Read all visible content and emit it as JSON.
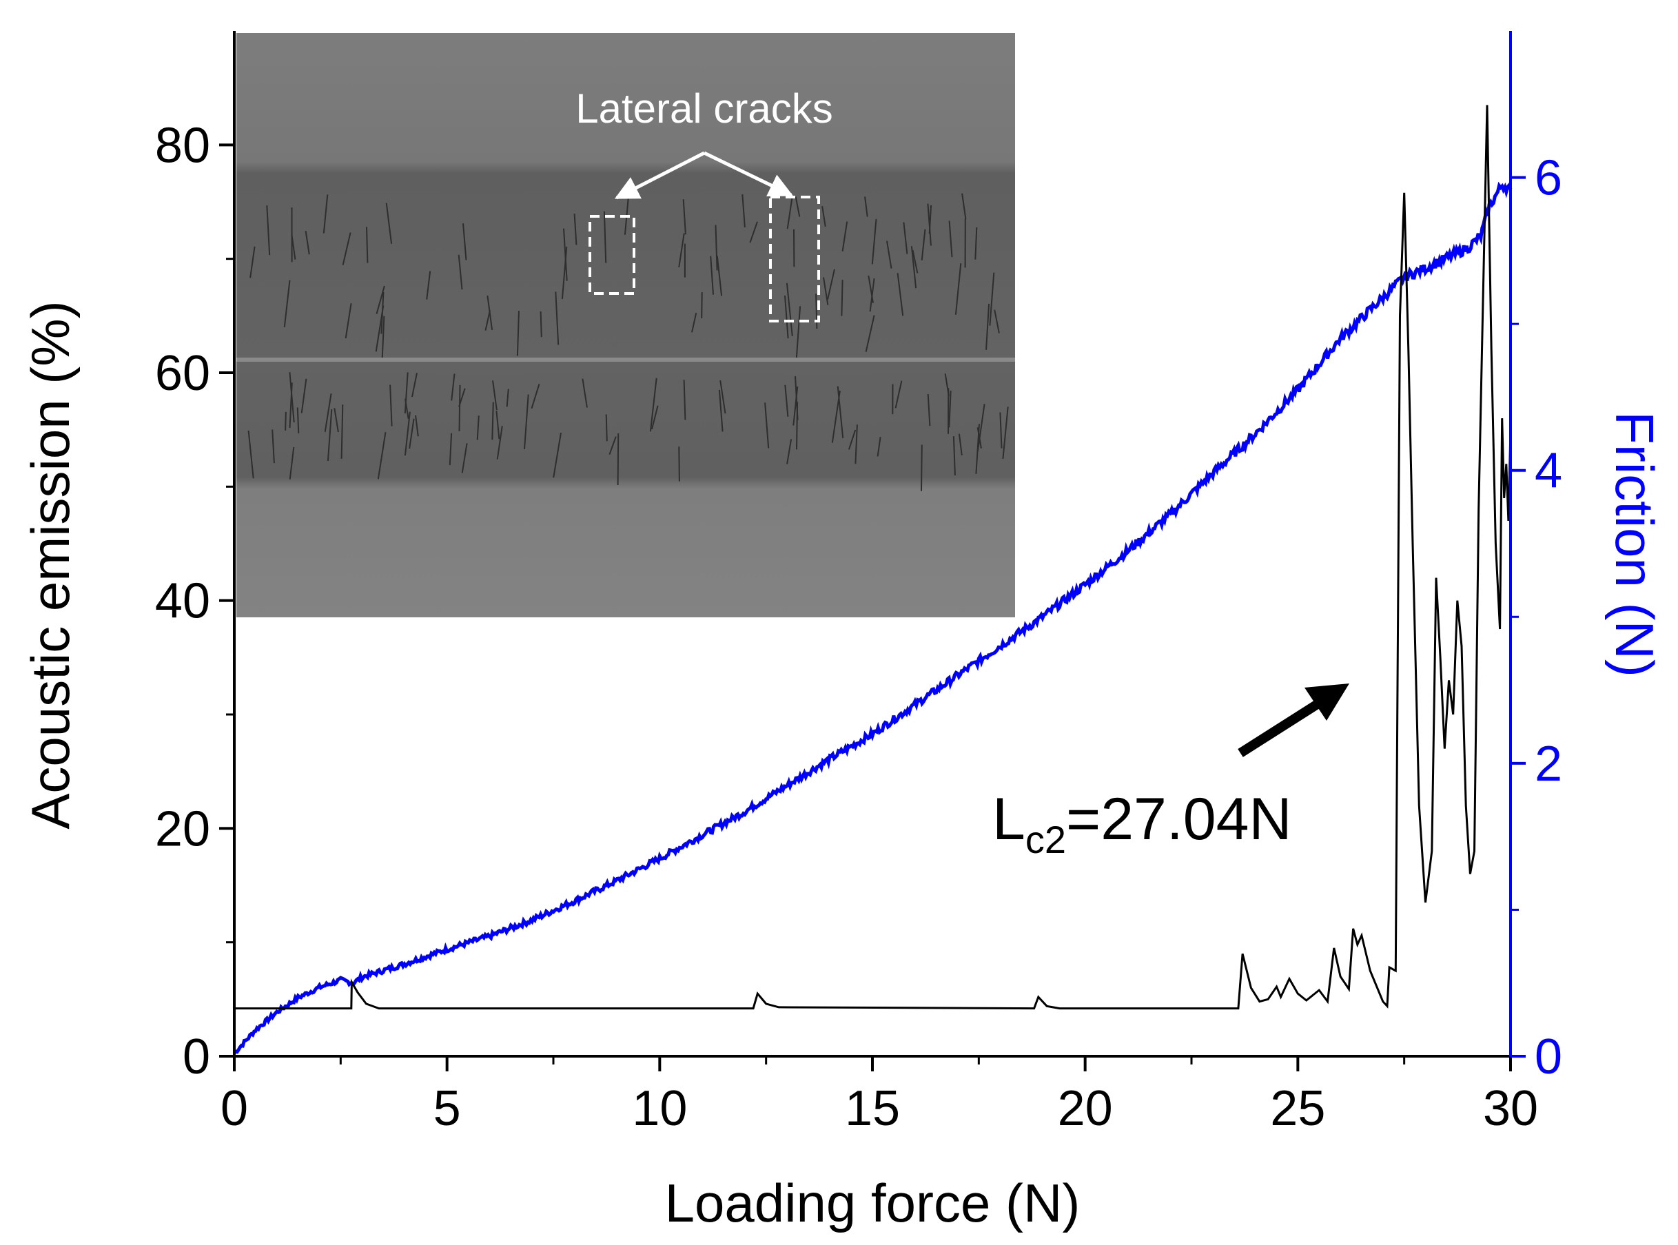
{
  "chart_data": {
    "type": "line",
    "x": {
      "label": "Loading force (N)",
      "range": [
        0,
        30
      ],
      "ticks": [
        0,
        5,
        10,
        15,
        20,
        25,
        30
      ],
      "tick_labels": [
        "0",
        "5",
        "10",
        "15",
        "20",
        "25",
        "30"
      ]
    },
    "y_left": {
      "label": "Acoustic emission (%)",
      "range": [
        0,
        90
      ],
      "ticks": [
        0,
        20,
        40,
        60,
        80
      ],
      "tick_labels": [
        "0",
        "20",
        "40",
        "60",
        "80"
      ],
      "color": "#000000"
    },
    "y_right": {
      "label": "Friction (N)",
      "range": [
        0,
        7
      ],
      "ticks": [
        0,
        2,
        4,
        6
      ],
      "tick_labels": [
        "0",
        "2",
        "4",
        "6"
      ],
      "color": "#0000ff"
    },
    "series": [
      {
        "name": "Acoustic emission",
        "axis": "left",
        "color": "#000000",
        "points": [
          [
            0,
            4.2
          ],
          [
            2.75,
            4.2
          ],
          [
            2.76,
            6.5
          ],
          [
            2.9,
            5.6
          ],
          [
            3.1,
            4.6
          ],
          [
            3.4,
            4.2
          ],
          [
            12.2,
            4.2
          ],
          [
            12.3,
            5.5
          ],
          [
            12.5,
            4.6
          ],
          [
            12.8,
            4.3
          ],
          [
            18.8,
            4.2
          ],
          [
            18.9,
            5.2
          ],
          [
            19.1,
            4.4
          ],
          [
            19.4,
            4.2
          ],
          [
            23.6,
            4.2
          ],
          [
            23.7,
            9.0
          ],
          [
            23.9,
            6.0
          ],
          [
            24.1,
            4.8
          ],
          [
            24.3,
            5.0
          ],
          [
            24.5,
            6.1
          ],
          [
            24.6,
            5.2
          ],
          [
            24.8,
            6.8
          ],
          [
            25.0,
            5.5
          ],
          [
            25.2,
            4.9
          ],
          [
            25.5,
            5.8
          ],
          [
            25.7,
            4.8
          ],
          [
            25.85,
            9.5
          ],
          [
            26.0,
            7.0
          ],
          [
            26.2,
            5.9
          ],
          [
            26.3,
            11.2
          ],
          [
            26.4,
            9.8
          ],
          [
            26.5,
            10.6
          ],
          [
            26.7,
            7.5
          ],
          [
            27.0,
            4.8
          ],
          [
            27.1,
            4.4
          ],
          [
            27.15,
            7.8
          ],
          [
            27.3,
            7.5
          ],
          [
            27.4,
            65.0
          ],
          [
            27.5,
            75.8
          ],
          [
            27.6,
            62.0
          ],
          [
            27.7,
            45.0
          ],
          [
            27.85,
            22.0
          ],
          [
            28.0,
            13.5
          ],
          [
            28.15,
            18.0
          ],
          [
            28.25,
            42.0
          ],
          [
            28.35,
            35.0
          ],
          [
            28.45,
            27.0
          ],
          [
            28.55,
            33.0
          ],
          [
            28.65,
            30.0
          ],
          [
            28.75,
            40.0
          ],
          [
            28.85,
            36.0
          ],
          [
            28.95,
            22.0
          ],
          [
            29.05,
            16.0
          ],
          [
            29.15,
            18.0
          ],
          [
            29.25,
            48.0
          ],
          [
            29.35,
            66.0
          ],
          [
            29.45,
            83.5
          ],
          [
            29.55,
            62.0
          ],
          [
            29.65,
            45.0
          ],
          [
            29.75,
            37.5
          ],
          [
            29.8,
            56.0
          ],
          [
            29.85,
            49.0
          ],
          [
            29.9,
            52.0
          ],
          [
            29.95,
            47.0
          ],
          [
            30.0,
            55.0
          ]
        ]
      },
      {
        "name": "Friction",
        "axis": "right",
        "color": "#0000ff",
        "points": [
          [
            0,
            0.02
          ],
          [
            0.5,
            0.18
          ],
          [
            1.0,
            0.3
          ],
          [
            1.5,
            0.4
          ],
          [
            2.0,
            0.47
          ],
          [
            2.5,
            0.52
          ],
          [
            2.8,
            0.5
          ],
          [
            3.0,
            0.54
          ],
          [
            4.0,
            0.63
          ],
          [
            5.0,
            0.73
          ],
          [
            6.0,
            0.82
          ],
          [
            7.0,
            0.93
          ],
          [
            8.0,
            1.06
          ],
          [
            9.0,
            1.2
          ],
          [
            10.0,
            1.35
          ],
          [
            11.0,
            1.51
          ],
          [
            12.0,
            1.67
          ],
          [
            13.0,
            1.85
          ],
          [
            14.0,
            2.03
          ],
          [
            15.0,
            2.2
          ],
          [
            16.0,
            2.4
          ],
          [
            17.0,
            2.6
          ],
          [
            18.0,
            2.8
          ],
          [
            19.0,
            3.0
          ],
          [
            20.0,
            3.22
          ],
          [
            21.0,
            3.45
          ],
          [
            22.0,
            3.7
          ],
          [
            23.0,
            3.98
          ],
          [
            24.0,
            4.25
          ],
          [
            25.0,
            4.55
          ],
          [
            26.0,
            4.9
          ],
          [
            27.0,
            5.18
          ],
          [
            27.5,
            5.32
          ],
          [
            28.0,
            5.38
          ],
          [
            28.5,
            5.45
          ],
          [
            29.0,
            5.52
          ],
          [
            29.3,
            5.6
          ],
          [
            29.5,
            5.8
          ],
          [
            29.8,
            5.95
          ],
          [
            30.0,
            5.92
          ]
        ]
      }
    ],
    "annotations": [
      {
        "id": "lc2",
        "text_main": "L",
        "text_sub": "c2",
        "text_tail": "=27.04N"
      }
    ],
    "inset": {
      "description_label": "Lateral cracks"
    }
  }
}
